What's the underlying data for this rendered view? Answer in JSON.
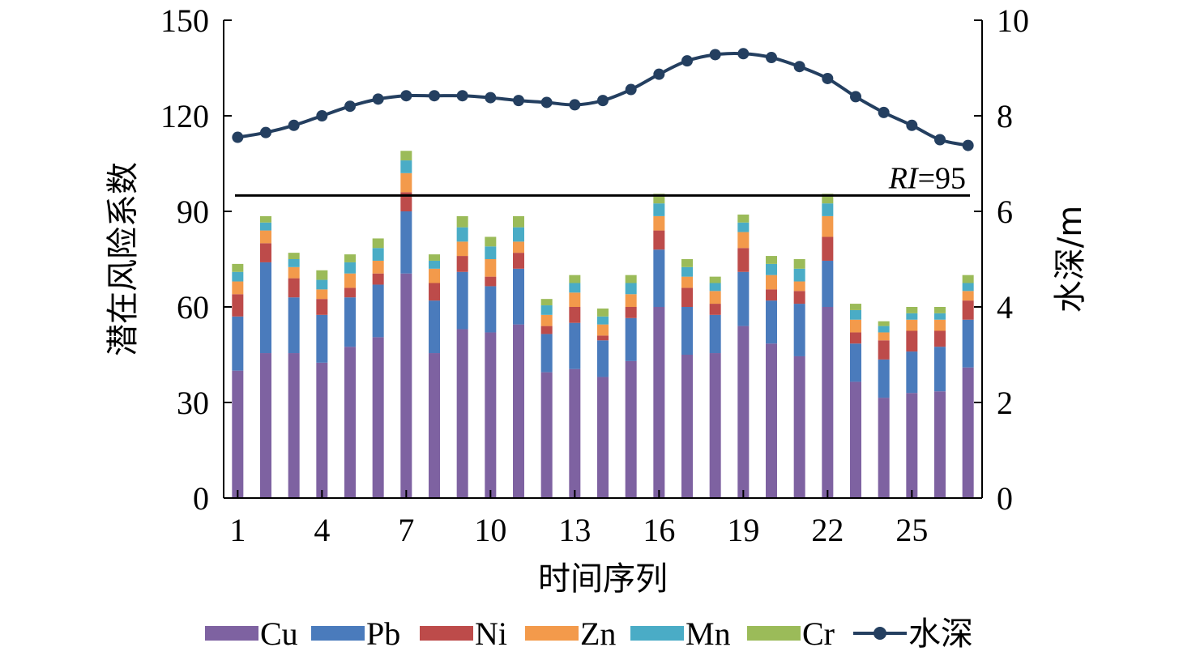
{
  "chart_data": {
    "type": "bar",
    "subtype": "stacked-bar-with-line-on-secondary-axis",
    "x": [
      1,
      2,
      3,
      4,
      5,
      6,
      7,
      8,
      9,
      10,
      11,
      12,
      13,
      14,
      15,
      16,
      17,
      18,
      19,
      20,
      21,
      22,
      23,
      24,
      25,
      26,
      27
    ],
    "x_tick_labels": [
      "1",
      "4",
      "7",
      "10",
      "13",
      "16",
      "19",
      "22",
      "25"
    ],
    "xlabel": "时间序列",
    "ylabel": "潜在风险系数",
    "y2label": "水深/m",
    "ylim": [
      0,
      150
    ],
    "y_ticks": [
      "0",
      "30",
      "60",
      "90",
      "120",
      "150"
    ],
    "y2lim": [
      0,
      10
    ],
    "y2_ticks": [
      "0",
      "2",
      "4",
      "6",
      "8",
      "10"
    ],
    "legend_position": "bottom",
    "grid": false,
    "series": [
      {
        "name": "Cu",
        "kind": "bar",
        "color": "#7E62A1",
        "values": [
          40,
          45.5,
          45.5,
          42.5,
          47.5,
          50.5,
          70.5,
          45.5,
          53,
          52,
          54.5,
          39.5,
          40.5,
          38,
          43,
          60,
          45,
          45.5,
          54,
          48.5,
          44.5,
          60,
          36.5,
          31.5,
          33,
          33.5,
          41
        ]
      },
      {
        "name": "Pb",
        "kind": "bar",
        "color": "#4A7BBC",
        "values": [
          17,
          28.5,
          17.5,
          15,
          15.5,
          16.5,
          19.5,
          16.5,
          18,
          14.5,
          17.5,
          12,
          14.5,
          11.5,
          13.5,
          18,
          15,
          12,
          17,
          13.5,
          16.5,
          14.5,
          12,
          12,
          13,
          14,
          15
        ]
      },
      {
        "name": "Ni",
        "kind": "bar",
        "color": "#BD4B4A",
        "values": [
          7,
          6,
          6,
          5,
          3,
          3.5,
          6,
          5.5,
          5,
          3,
          5,
          2.5,
          5,
          1.5,
          3.5,
          6,
          6,
          3.5,
          7.5,
          3.5,
          4,
          7.5,
          3.5,
          6,
          6.5,
          5,
          6
        ]
      },
      {
        "name": "Zn",
        "kind": "bar",
        "color": "#F39A4B",
        "values": [
          4,
          4,
          3.5,
          3,
          4.5,
          4,
          6,
          4.5,
          4.5,
          5.5,
          3.5,
          3.5,
          4.5,
          3.5,
          4,
          4.5,
          3.5,
          4,
          5,
          4.5,
          3,
          6.5,
          4,
          2.5,
          3.5,
          3.5,
          3
        ]
      },
      {
        "name": "Mn",
        "kind": "bar",
        "color": "#4AACC6",
        "values": [
          3,
          2.5,
          2.5,
          3,
          3.5,
          4,
          4,
          2.5,
          4.5,
          4,
          4.5,
          3,
          3,
          2.5,
          3.5,
          4,
          3,
          2.5,
          3,
          3.5,
          4,
          4,
          3,
          2,
          2,
          2,
          2.5
        ]
      },
      {
        "name": "Cr",
        "kind": "bar",
        "color": "#9BBB59",
        "values": [
          2.5,
          2,
          2,
          3,
          2.5,
          3,
          3,
          2,
          3.5,
          3,
          3.5,
          2,
          2.5,
          2.5,
          2.5,
          3,
          2.5,
          2,
          2.5,
          2.5,
          3,
          3,
          2,
          1.5,
          2,
          2,
          2.5
        ]
      },
      {
        "name": "水深",
        "kind": "line",
        "axis": "right",
        "color": "#243F60",
        "values": [
          7.55,
          7.65,
          7.8,
          8.0,
          8.2,
          8.35,
          8.42,
          8.42,
          8.42,
          8.38,
          8.32,
          8.28,
          8.23,
          8.32,
          8.55,
          8.87,
          9.15,
          9.28,
          9.3,
          9.22,
          9.03,
          8.78,
          8.4,
          8.07,
          7.8,
          7.5,
          7.38
        ]
      }
    ],
    "reference_line": {
      "value": 95,
      "label_italic": "RI",
      "label_rest": "=95",
      "color": "#000000"
    }
  }
}
